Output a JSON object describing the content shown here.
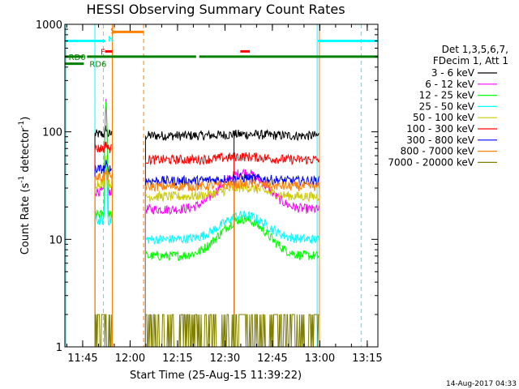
{
  "chart_data": {
    "type": "line",
    "title": "HESSI Observing Summary Count Rates",
    "xlabel": "Start Time (25-Aug-15 11:39:22)",
    "ylabel_main": "Count Rate (s",
    "ylabel_sup1": "-1",
    "ylabel_mid": " detector",
    "ylabel_sup2": "-1",
    "ylabel_end": ")",
    "y_scale": "log",
    "ylim": [
      1,
      1000
    ],
    "xlim_minutes": [
      0,
      99
    ],
    "x_ticks": [
      {
        "t": 5.63,
        "label": "11:45"
      },
      {
        "t": 20.63,
        "label": "12:00"
      },
      {
        "t": 35.63,
        "label": "12:15"
      },
      {
        "t": 50.63,
        "label": "12:30"
      },
      {
        "t": 65.63,
        "label": "12:45"
      },
      {
        "t": 80.63,
        "label": "13:00"
      },
      {
        "t": 95.63,
        "label": "13:15"
      }
    ],
    "y_ticks": [
      {
        "v": 1,
        "label": "1"
      },
      {
        "v": 10,
        "label": "10"
      },
      {
        "v": 100,
        "label": "100"
      },
      {
        "v": 1000,
        "label": "1000"
      }
    ],
    "legend_header": [
      "Det 1,3,5,6,7,",
      "FDecim 1, Att 1"
    ],
    "series": [
      {
        "name": "3 - 6 keV",
        "color": "#000000",
        "level_day1": 95,
        "level_day2": 92,
        "peak": 110
      },
      {
        "name": "6 - 12 keV",
        "color": "#ff00ff",
        "level_day1": 28,
        "level_day2": 19,
        "peak": 200
      },
      {
        "name": "12 - 25 keV",
        "color": "#00ff00",
        "level_day1": 17,
        "level_day2": 7,
        "peak": 220
      },
      {
        "name": "25 - 50 keV",
        "color": "#00ffff",
        "level_day1": 15,
        "level_day2": 10,
        "peak": 55
      },
      {
        "name": "50 - 100 keV",
        "color": "#cccc00",
        "level_day1": 33,
        "level_day2": 25,
        "peak": 60
      },
      {
        "name": "100 - 300 keV",
        "color": "#ff0000",
        "level_day1": 70,
        "level_day2": 55,
        "peak": 80
      },
      {
        "name": "300 - 800 keV",
        "color": "#0000ff",
        "level_day1": 45,
        "level_day2": 35,
        "peak": 50
      },
      {
        "name": "800 - 7000 keV",
        "color": "#ff8000",
        "level_day1": 38,
        "level_day2": 31,
        "peak": 42
      },
      {
        "name": "7000 - 20000 keV",
        "color": "#808000",
        "level_day1": 2,
        "level_day2": 2,
        "peak": 3
      }
    ],
    "day_segments": [
      {
        "start": 9.5,
        "end": 14.8
      },
      {
        "start": 25.5,
        "end": 53.5
      },
      {
        "start": 53.5,
        "end": 80.4
      }
    ],
    "vertical_lines": [
      {
        "t": 0.3,
        "color": "#00ffff",
        "style": "solid"
      },
      {
        "t": 9.5,
        "color": "#00ffff",
        "style": "solid"
      },
      {
        "t": 12.2,
        "color": "#00ffff",
        "style": "dashed"
      },
      {
        "t": 15.0,
        "color": "#ff8000",
        "style": "solid"
      },
      {
        "t": 24.9,
        "color": "#ff8000",
        "style": "dashed"
      },
      {
        "t": 79.8,
        "color": "#00ffff",
        "style": "solid"
      },
      {
        "t": 80.5,
        "color": "#ff8000",
        "style": "solid"
      },
      {
        "t": 93.7,
        "color": "#00ffff",
        "style": "dashed"
      }
    ],
    "flag_bars": [
      {
        "name": "eclipse",
        "color": "#00ffff",
        "y": 700,
        "segments": [
          [
            0,
            12.8
          ],
          [
            80,
            99
          ]
        ]
      },
      {
        "name": "saa",
        "color": "#ff8000",
        "y": 850,
        "segments": [
          [
            15.0,
            25.0
          ]
        ]
      },
      {
        "name": "flare",
        "color": "#ff0000",
        "y": 560,
        "segments": [
          [
            12.7,
            15.0
          ],
          [
            55.5,
            58.5
          ]
        ]
      },
      {
        "name": "rd0",
        "color": "#008000",
        "y": 500,
        "segments": [
          [
            0,
            6
          ],
          [
            7,
            41.5
          ],
          [
            42.5,
            99
          ]
        ]
      },
      {
        "name": "rd6",
        "color": "#008000",
        "y": 430,
        "segments": [
          [
            0,
            6
          ]
        ]
      }
    ],
    "flag_labels": [
      {
        "text": "S",
        "color": "#ff8000",
        "t": 14.4,
        "y": 880
      },
      {
        "text": "N",
        "color": "#00ffff",
        "t": 13.6,
        "y": 740
      },
      {
        "text": "F",
        "color": "#ff0000",
        "t": 11.3,
        "y": 560
      },
      {
        "text": "RD0",
        "color": "#008000",
        "t": 1.2,
        "y": 500
      },
      {
        "text": "RD6",
        "color": "#008000",
        "t": 7.8,
        "y": 430
      }
    ],
    "timestamp": "14-Aug-2017 04:33"
  }
}
